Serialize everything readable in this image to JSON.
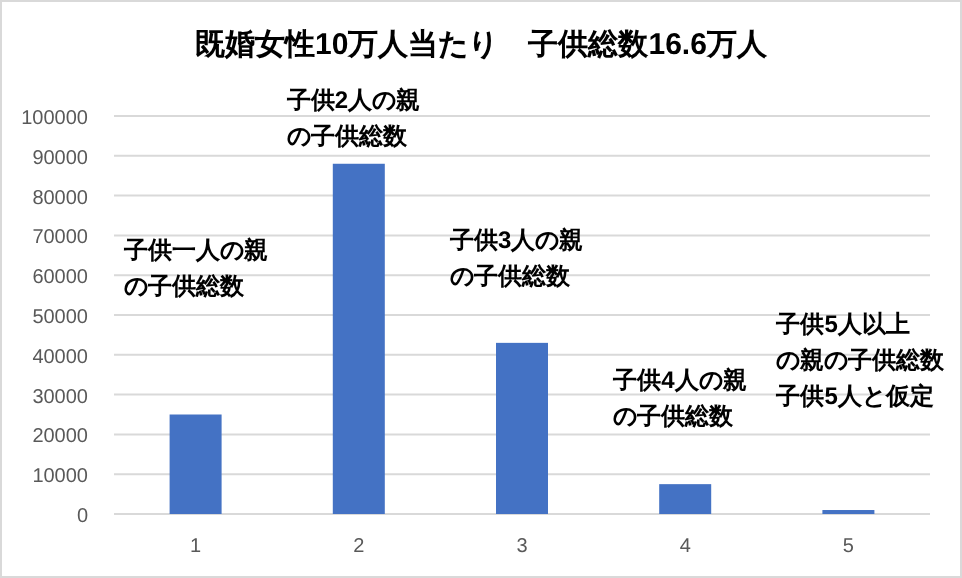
{
  "chart_data": {
    "type": "bar",
    "title": "既婚女性10万人当たり　子供総数16.6万人",
    "categories": [
      "1",
      "2",
      "3",
      "4",
      "5"
    ],
    "values": [
      25000,
      88000,
      43000,
      7500,
      1000
    ],
    "color": "#4472c4",
    "ylim": [
      0,
      100000
    ],
    "yticks": [
      0,
      10000,
      20000,
      30000,
      40000,
      50000,
      60000,
      70000,
      80000,
      90000,
      100000
    ],
    "grid": "y",
    "annotations": [
      "子供一人の親の子供総数",
      "子供2人の親の子供総数",
      "子供3人の親の子供総数",
      "子供4人の親の子供総数",
      "子供5人以上の親の子供総数子供5人と仮定"
    ]
  }
}
